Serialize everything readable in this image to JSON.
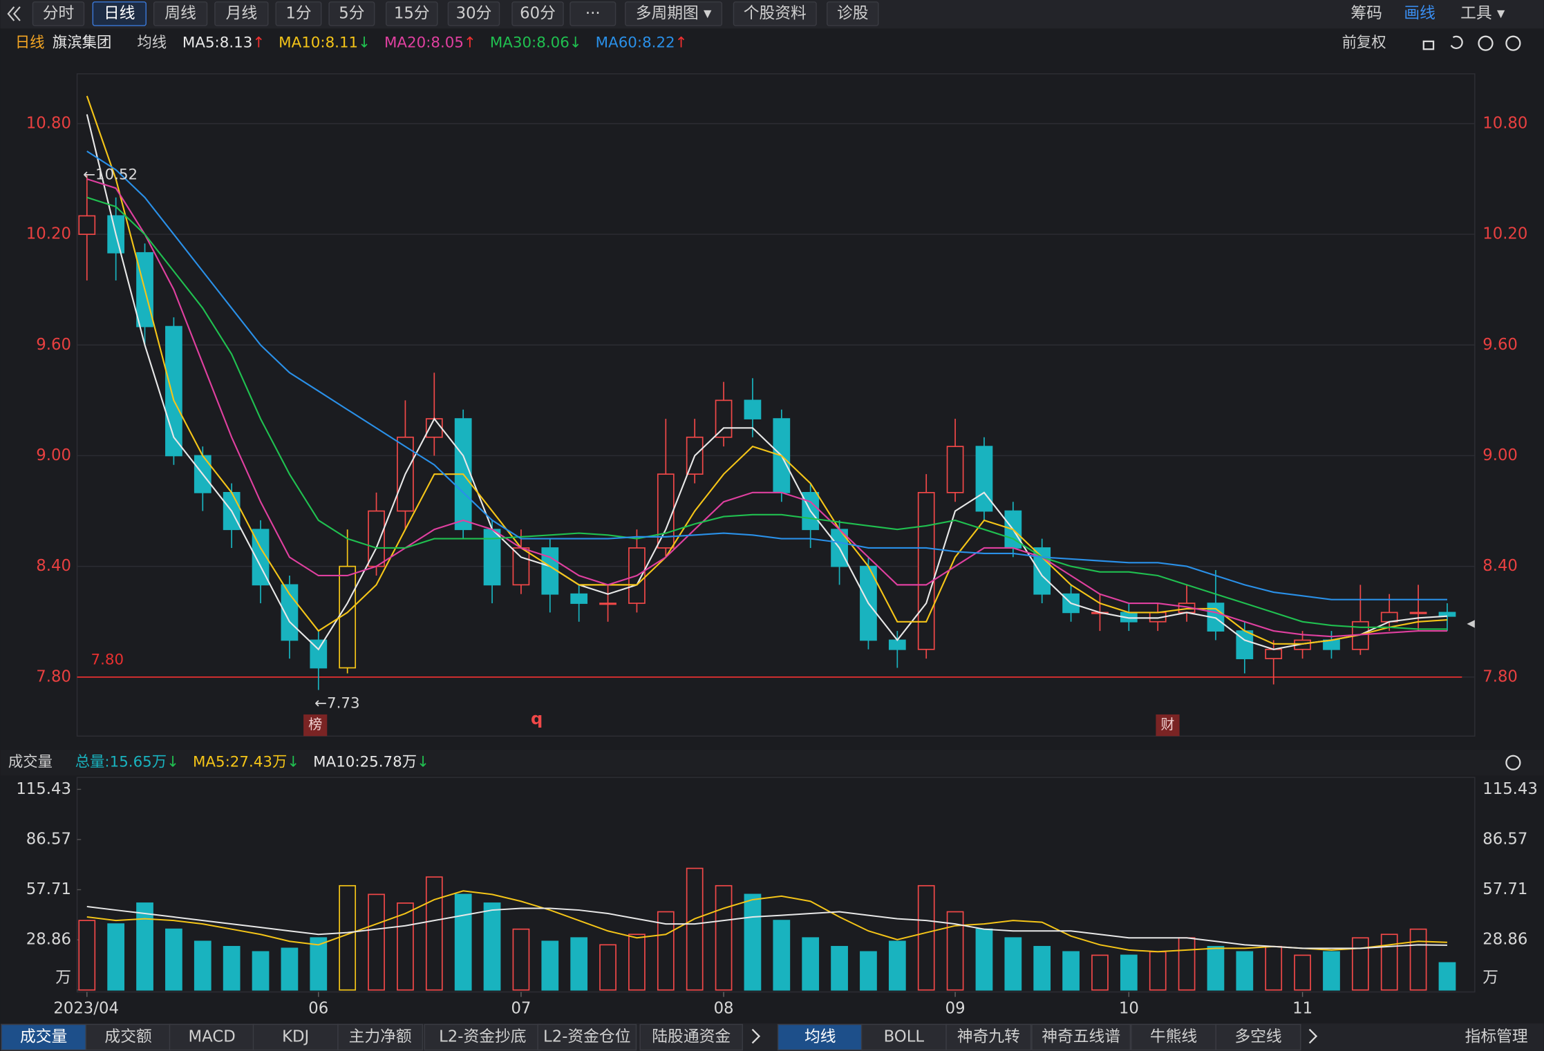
{
  "toolbar": {
    "tabs": [
      "分时",
      "日线",
      "周线",
      "月线",
      "1分",
      "5分",
      "15分",
      "30分",
      "60分",
      "···",
      "多周期图 ▾",
      "个股资料",
      "诊股"
    ],
    "active": 1,
    "right_tools": [
      "筹码",
      "画线",
      "工具 ▾"
    ],
    "right_active": 1
  },
  "header": {
    "period": "日线",
    "name": "旗滨集团",
    "indicator": "均线",
    "ma_legend": [
      {
        "text": "MA5:8.13",
        "arrow": "↑"
      },
      {
        "text": "MA10:8.11",
        "arrow": "↓"
      },
      {
        "text": "MA20:8.05",
        "arrow": "↑"
      },
      {
        "text": "MA30:8.06",
        "arrow": "↓"
      },
      {
        "text": "MA60:8.22",
        "arrow": "↑"
      }
    ],
    "adjust": "前复权"
  },
  "volume_header": {
    "title": "成交量",
    "items": [
      {
        "text": "总量:15.65万",
        "arrow": "↓",
        "color": "#19b3bf"
      },
      {
        "text": "MA5:27.43万",
        "arrow": "↓",
        "color": "#f5c518"
      },
      {
        "text": "MA10:25.78万",
        "arrow": "↓",
        "color": "#e8e8e8"
      }
    ]
  },
  "event_markers": [
    "榜",
    "q",
    "财"
  ],
  "chart_data": {
    "type": "candlestick",
    "categories": [
      "2023/04",
      null,
      null,
      null,
      null,
      null,
      null,
      null,
      "06",
      null,
      null,
      null,
      null,
      null,
      null,
      "07",
      null,
      null,
      null,
      null,
      null,
      null,
      "08",
      null,
      null,
      null,
      null,
      null,
      null,
      null,
      "09",
      null,
      null,
      null,
      null,
      null,
      "10",
      null,
      null,
      null,
      null,
      null,
      "11",
      null,
      null,
      null,
      null,
      null
    ],
    "open": [
      10.2,
      10.3,
      10.1,
      9.7,
      9.0,
      8.8,
      8.6,
      8.3,
      8.0,
      7.85,
      8.4,
      8.7,
      9.1,
      9.2,
      8.6,
      8.3,
      8.5,
      8.25,
      8.2,
      8.2,
      8.5,
      8.9,
      9.1,
      9.3,
      9.2,
      8.8,
      8.6,
      8.4,
      8.0,
      7.95,
      8.8,
      9.05,
      8.7,
      8.5,
      8.25,
      8.15,
      8.15,
      8.1,
      8.15,
      8.2,
      8.05,
      7.9,
      7.95,
      8.0,
      7.95,
      8.1,
      8.15,
      8.15
    ],
    "high": [
      10.52,
      10.4,
      10.15,
      9.75,
      9.05,
      8.85,
      8.65,
      8.35,
      8.05,
      8.6,
      8.8,
      9.3,
      9.45,
      9.25,
      8.65,
      8.6,
      8.55,
      8.3,
      8.3,
      8.6,
      9.2,
      9.2,
      9.4,
      9.42,
      9.25,
      8.85,
      8.65,
      8.45,
      8.05,
      8.9,
      9.2,
      9.1,
      8.75,
      8.55,
      8.3,
      8.25,
      8.2,
      8.2,
      8.3,
      8.38,
      8.1,
      8.0,
      8.05,
      8.05,
      8.3,
      8.25,
      8.3,
      8.2
    ],
    "low": [
      9.95,
      9.95,
      9.6,
      8.95,
      8.7,
      8.5,
      8.2,
      7.9,
      7.73,
      7.82,
      8.35,
      8.6,
      9.0,
      8.55,
      8.2,
      8.25,
      8.15,
      8.1,
      8.1,
      8.15,
      8.45,
      8.85,
      9.05,
      9.1,
      8.75,
      8.5,
      8.3,
      7.95,
      7.85,
      7.9,
      8.75,
      8.65,
      8.45,
      8.2,
      8.1,
      8.05,
      8.05,
      8.05,
      8.1,
      8.0,
      7.82,
      7.76,
      7.9,
      7.9,
      7.92,
      8.05,
      8.05,
      8.05
    ],
    "close": [
      10.3,
      10.1,
      9.7,
      9.0,
      8.8,
      8.6,
      8.3,
      8.0,
      7.85,
      8.4,
      8.7,
      9.1,
      9.2,
      8.6,
      8.3,
      8.5,
      8.25,
      8.2,
      8.2,
      8.5,
      8.9,
      9.1,
      9.3,
      9.2,
      8.8,
      8.6,
      8.4,
      8.0,
      7.95,
      8.8,
      9.05,
      8.7,
      8.5,
      8.25,
      8.15,
      8.15,
      8.1,
      8.15,
      8.2,
      8.05,
      7.9,
      7.95,
      8.0,
      7.95,
      8.1,
      8.15,
      8.15,
      8.13
    ],
    "ylim": [
      7.48,
      11.07
    ],
    "yticks": [
      {
        "value": 10.8,
        "label": "10.80"
      },
      {
        "value": 10.2,
        "label": "10.20"
      },
      {
        "value": 9.6,
        "label": "9.60"
      },
      {
        "value": 9.0,
        "label": "9.00"
      },
      {
        "value": 8.4,
        "label": "8.40"
      },
      {
        "value": 7.8,
        "label": "7.80"
      }
    ],
    "grid": true,
    "up_color": "#f04848",
    "down_color": "#19b3bf",
    "highlight": 9,
    "highlight_color": "#f5c518",
    "ma_lines": [
      {
        "color": "#e8e8e8",
        "values": [
          10.85,
          10.2,
          9.6,
          9.1,
          8.9,
          8.7,
          8.4,
          8.1,
          7.95,
          8.2,
          8.5,
          8.9,
          9.2,
          9.0,
          8.6,
          8.45,
          8.4,
          8.3,
          8.25,
          8.3,
          8.6,
          9.0,
          9.15,
          9.15,
          9.0,
          8.7,
          8.5,
          8.2,
          8.0,
          8.2,
          8.7,
          8.8,
          8.6,
          8.35,
          8.2,
          8.15,
          8.12,
          8.12,
          8.15,
          8.12,
          8.0,
          7.95,
          7.98,
          8.0,
          8.03,
          8.1,
          8.12,
          8.13
        ]
      },
      {
        "color": "#f5c518",
        "values": [
          10.95,
          10.5,
          9.9,
          9.3,
          9.0,
          8.8,
          8.5,
          8.25,
          8.05,
          8.15,
          8.3,
          8.6,
          8.9,
          8.9,
          8.7,
          8.5,
          8.4,
          8.3,
          8.3,
          8.3,
          8.45,
          8.7,
          8.9,
          9.05,
          9.0,
          8.85,
          8.6,
          8.4,
          8.1,
          8.1,
          8.45,
          8.65,
          8.6,
          8.45,
          8.3,
          8.2,
          8.15,
          8.15,
          8.17,
          8.17,
          8.05,
          7.98,
          7.98,
          8.0,
          8.03,
          8.07,
          8.1,
          8.11
        ]
      },
      {
        "color": "#e040a0",
        "values": [
          10.5,
          10.45,
          10.2,
          9.9,
          9.5,
          9.1,
          8.75,
          8.45,
          8.35,
          8.35,
          8.4,
          8.5,
          8.6,
          8.65,
          8.6,
          8.5,
          8.45,
          8.35,
          8.3,
          8.35,
          8.45,
          8.6,
          8.75,
          8.8,
          8.8,
          8.75,
          8.6,
          8.45,
          8.3,
          8.3,
          8.4,
          8.5,
          8.5,
          8.45,
          8.35,
          8.25,
          8.2,
          8.2,
          8.18,
          8.15,
          8.1,
          8.05,
          8.03,
          8.02,
          8.03,
          8.04,
          8.05,
          8.05
        ]
      },
      {
        "color": "#20c050",
        "values": [
          10.4,
          10.35,
          10.2,
          10.0,
          9.8,
          9.55,
          9.2,
          8.9,
          8.65,
          8.55,
          8.5,
          8.5,
          8.55,
          8.55,
          8.55,
          8.56,
          8.57,
          8.58,
          8.57,
          8.55,
          8.58,
          8.63,
          8.67,
          8.68,
          8.68,
          8.66,
          8.64,
          8.62,
          8.6,
          8.62,
          8.65,
          8.6,
          8.55,
          8.45,
          8.4,
          8.37,
          8.37,
          8.35,
          8.3,
          8.25,
          8.2,
          8.15,
          8.1,
          8.08,
          8.07,
          8.07,
          8.06,
          8.06
        ]
      },
      {
        "color": "#2a90e8",
        "values": [
          10.65,
          10.55,
          10.4,
          10.2,
          10.0,
          9.8,
          9.6,
          9.45,
          9.35,
          9.25,
          9.15,
          9.05,
          8.95,
          8.8,
          8.65,
          8.55,
          8.55,
          8.55,
          8.55,
          8.56,
          8.56,
          8.57,
          8.58,
          8.57,
          8.55,
          8.55,
          8.53,
          8.5,
          8.5,
          8.5,
          8.48,
          8.47,
          8.47,
          8.45,
          8.44,
          8.43,
          8.42,
          8.42,
          8.4,
          8.35,
          8.3,
          8.26,
          8.24,
          8.22,
          8.22,
          8.22,
          8.22,
          8.22
        ]
      }
    ],
    "ref_line": {
      "value": 7.8,
      "label": "7.80",
      "color": "#e83030"
    },
    "annotations": [
      {
        "label": "←10.52",
        "value": 10.52
      },
      {
        "label": "←7.73",
        "value": 7.73
      }
    ],
    "volume": {
      "values": [
        40,
        38,
        50,
        35,
        28,
        25,
        22,
        24,
        30,
        60,
        55,
        50,
        65,
        55,
        50,
        35,
        28,
        30,
        26,
        32,
        45,
        70,
        60,
        55,
        40,
        30,
        25,
        22,
        28,
        60,
        45,
        35,
        30,
        25,
        22,
        20,
        20,
        22,
        30,
        25,
        22,
        25,
        20,
        22,
        30,
        32,
        35,
        15.65
      ],
      "ylim": [
        0,
        122.3
      ],
      "yticks": [
        115.43,
        86.57,
        57.71,
        28.86,
        {
          "value": 0,
          "label": "万"
        }
      ],
      "ma_lines": [
        {
          "color": "#f5c518",
          "values": [
            42,
            40,
            41,
            40,
            38,
            35,
            32,
            28,
            26,
            32,
            38,
            44,
            52,
            57,
            55,
            51,
            46,
            40,
            34,
            30,
            32,
            41,
            47,
            52,
            54,
            51,
            42,
            34,
            29,
            33,
            37,
            38,
            40,
            39,
            31,
            26,
            23,
            22,
            23,
            24,
            24,
            25,
            24,
            23,
            24,
            26,
            28,
            27.43
          ]
        },
        {
          "color": "#e8e8e8",
          "values": [
            48,
            46,
            44,
            42,
            40,
            38,
            36,
            34,
            32,
            33,
            35,
            37,
            40,
            43,
            46,
            47,
            47,
            46,
            44,
            41,
            38,
            38,
            40,
            42,
            43,
            44,
            45,
            43,
            41,
            40,
            38,
            35,
            34,
            34,
            34,
            32,
            30,
            30,
            30,
            28,
            26,
            25,
            24,
            24,
            24,
            25,
            26,
            25.78
          ]
        }
      ]
    }
  },
  "bottom_tabs": {
    "left": [
      "成交量",
      "成交额",
      "MACD",
      "KDJ",
      "主力净额",
      "L2-资金抄底",
      "L2-资金仓位",
      "陆股通资金"
    ],
    "right": [
      "均线",
      "BOLL",
      "神奇九转",
      "神奇五线谱",
      "牛熊线",
      "多空线"
    ],
    "manage": "指标管理"
  }
}
